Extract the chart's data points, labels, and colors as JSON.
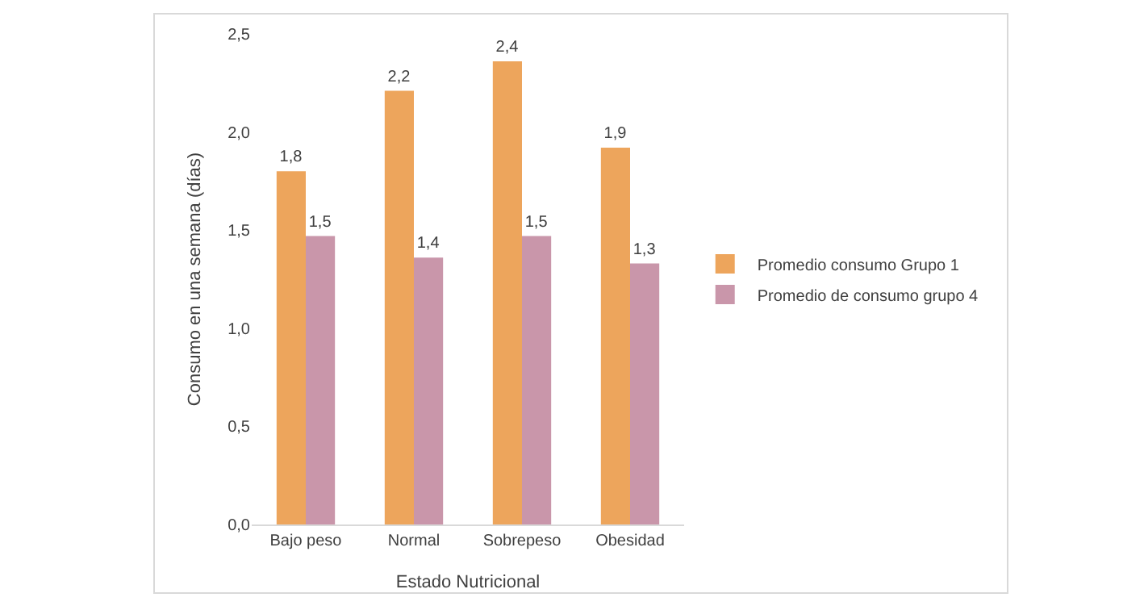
{
  "chart_data": {
    "type": "bar",
    "xlabel": "Estado Nutricional",
    "ylabel": "Consumo en una semana (días)",
    "categories": [
      "Bajo peso",
      "Normal",
      "Sobrepeso",
      "Obesidad"
    ],
    "series": [
      {
        "name": "Promedio consumo Grupo 1",
        "color": "#eda55c",
        "values": [
          1.8,
          2.21,
          2.36,
          1.92
        ],
        "value_labels": [
          "1,8",
          "2,2",
          "2,4",
          "1,9"
        ]
      },
      {
        "name": "Promedio de consumo grupo 4",
        "color": "#c996aa",
        "values": [
          1.47,
          1.36,
          1.47,
          1.33
        ],
        "value_labels": [
          "1,5",
          "1,4",
          "1,5",
          "1,3"
        ]
      }
    ],
    "ylim": [
      0,
      2.5
    ],
    "yticks": [
      {
        "value": 0,
        "label": "0,0"
      },
      {
        "value": 0.5,
        "label": "0,5"
      },
      {
        "value": 1,
        "label": "1,0"
      },
      {
        "value": 1.5,
        "label": "1,5"
      },
      {
        "value": 2,
        "label": "2,0"
      },
      {
        "value": 2.5,
        "label": "2,5"
      }
    ],
    "grid": false,
    "legend": "right"
  }
}
